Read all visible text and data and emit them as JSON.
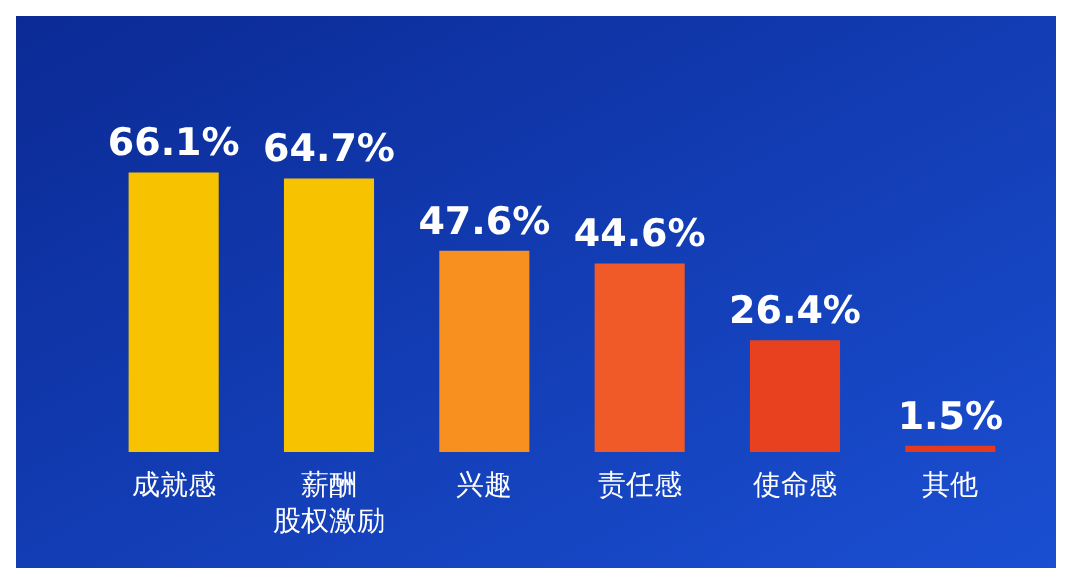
{
  "chart_data": {
    "type": "bar",
    "categories": [
      "成就感",
      "薪酬股权激励",
      "兴趣",
      "责任感",
      "使命感",
      "其他"
    ],
    "values": [
      66.1,
      64.7,
      47.6,
      44.6,
      26.4,
      1.5
    ],
    "colors": [
      "#f7c300",
      "#f7c300",
      "#f7901e",
      "#f05a28",
      "#e8411f",
      "#e53a1e"
    ],
    "value_labels": [
      "66.1%",
      "64.7%",
      "47.6%",
      "44.6%",
      "26.4%",
      "1.5%"
    ],
    "grid": false
  }
}
